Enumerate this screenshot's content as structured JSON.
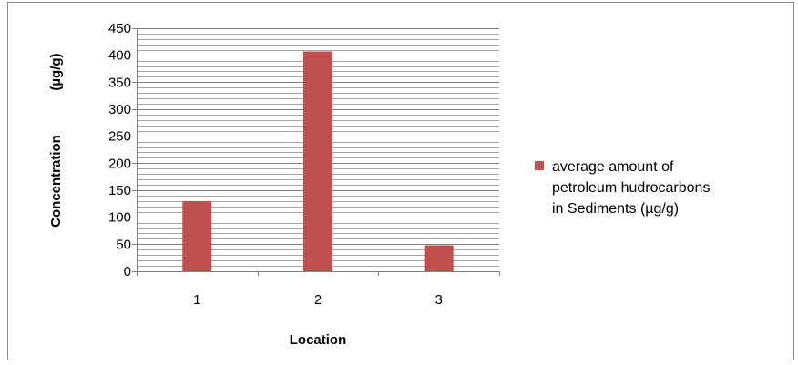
{
  "chart_data": {
    "type": "bar",
    "categories": [
      "1",
      "2",
      "3"
    ],
    "series": [
      {
        "name": "average amount of petroleum hudrocarbons in Sediments (µg/g)",
        "values": [
          130,
          407,
          48
        ],
        "color": "#c0504d"
      }
    ],
    "xlabel": "Location",
    "ylabel": [
      "Concentration",
      "(µg/g)"
    ],
    "ylim": [
      0,
      450
    ],
    "yticks": [
      "0",
      "50",
      "100",
      "150",
      "200",
      "250",
      "300",
      "350",
      "400",
      "450"
    ],
    "grid": true,
    "legend_position": "right",
    "legend_lines": [
      "average amount of",
      "petroleum hudrocarbons",
      "in Sediments (µg/g)"
    ]
  }
}
